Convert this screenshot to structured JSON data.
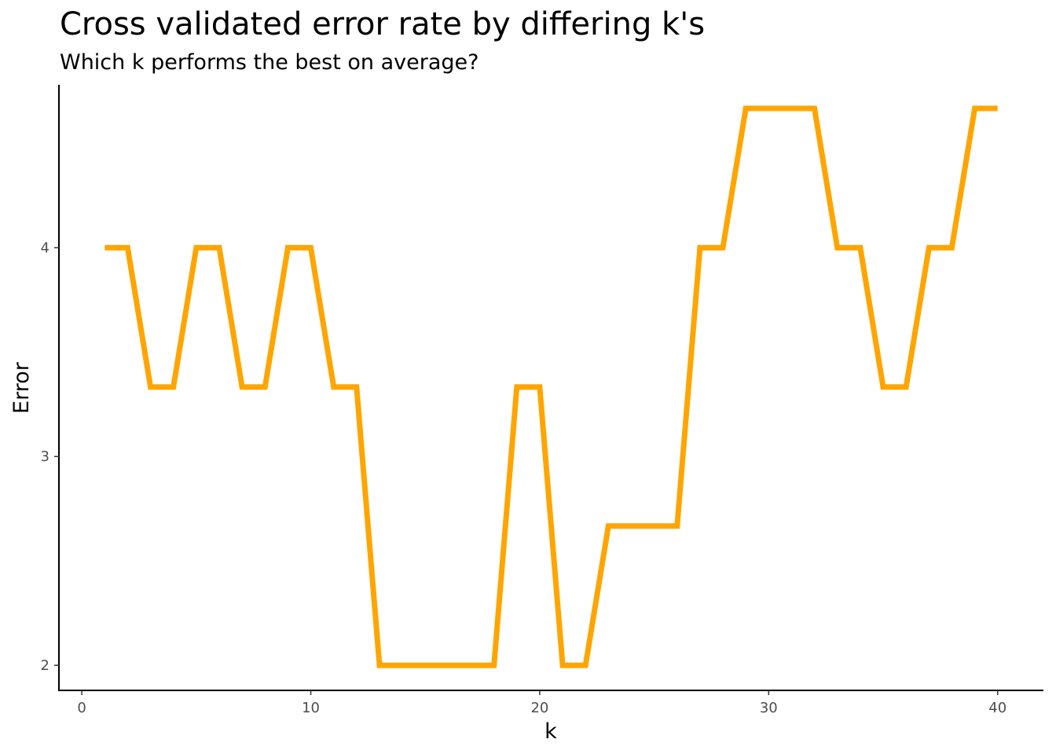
{
  "chart_data": {
    "type": "line",
    "title": "Cross validated error rate by differing k's",
    "subtitle": "Which k performs the best on average?",
    "xlabel": "k",
    "ylabel": "Error",
    "xlim": [
      -1,
      42
    ],
    "ylim": [
      1.88,
      4.78
    ],
    "x_ticks": [
      0,
      10,
      20,
      30,
      40
    ],
    "y_ticks": [
      2,
      3,
      4
    ],
    "grid": false,
    "line_color": "#FFA500",
    "series": [
      {
        "x": [
          1,
          2,
          3,
          4,
          5,
          6,
          7,
          8,
          9,
          10,
          11,
          12,
          13,
          14,
          15,
          16,
          17,
          18,
          19,
          20,
          21,
          22,
          23,
          24,
          25,
          26,
          27,
          28,
          29,
          30,
          31,
          32,
          33,
          34,
          35,
          36,
          37,
          38,
          39,
          40
        ],
        "values": [
          4,
          4,
          3.333,
          3.333,
          4,
          4,
          3.333,
          3.333,
          4,
          4,
          3.333,
          3.333,
          2,
          2,
          2,
          2,
          2,
          2,
          3.333,
          3.333,
          2,
          2,
          2.667,
          2.667,
          2.667,
          2.667,
          4,
          4,
          4.667,
          4.667,
          4.667,
          4.667,
          4,
          4,
          3.333,
          3.333,
          4,
          4,
          4.667,
          4.667
        ]
      }
    ]
  }
}
